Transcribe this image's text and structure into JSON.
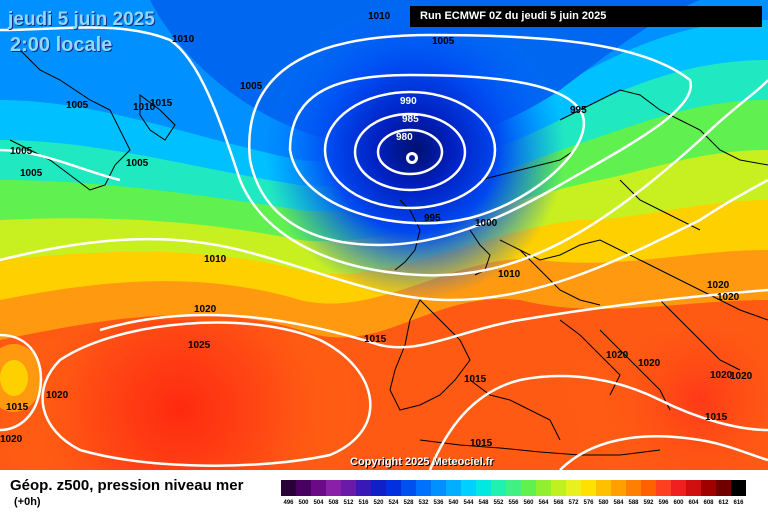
{
  "header": {
    "date": "jeudi 5 juin 2025",
    "time": "2:00 locale",
    "run": "Run ECMWF 0Z du jeudi 5 juin 2025"
  },
  "copyright": "Copyright 2025 Meteociel.fr",
  "footer": {
    "title": "Géop. z500, pression niveau mer",
    "subtitle": "(+0h)"
  },
  "isobar_labels": [
    "1010",
    "1005",
    "1010",
    "1005",
    "1015",
    "1010",
    "1005",
    "1005",
    "1005",
    "990",
    "985",
    "980",
    "995",
    "1000",
    "995",
    "1005",
    "1010",
    "1010",
    "1020",
    "1025",
    "1015",
    "1020",
    "1020",
    "1020",
    "1015",
    "1015",
    "1020",
    "1020",
    "1020",
    "1015",
    "1015",
    "1020",
    "1020"
  ],
  "scale": {
    "ticks": [
      "496",
      "500",
      "504",
      "508",
      "512",
      "516",
      "520",
      "524",
      "528",
      "532",
      "536",
      "540",
      "544",
      "548",
      "552",
      "556",
      "560",
      "564",
      "568",
      "572",
      "576",
      "580",
      "584",
      "588",
      "592",
      "596",
      "600",
      "604",
      "608",
      "612",
      "616"
    ],
    "colors": [
      "#2a0038",
      "#4a0060",
      "#6a0a86",
      "#8a20a8",
      "#6a1aa8",
      "#3a18b8",
      "#1020c8",
      "#0030e0",
      "#0050f0",
      "#0070ff",
      "#0090ff",
      "#00b0ff",
      "#00d0ff",
      "#00e8e0",
      "#20f0b0",
      "#40f080",
      "#60f050",
      "#90f030",
      "#c0f020",
      "#e8f020",
      "#ffe000",
      "#ffc000",
      "#ffa000",
      "#ff8000",
      "#ff6000",
      "#ff4020",
      "#f02020",
      "#d01010",
      "#a00000",
      "#700000",
      "#000000"
    ]
  }
}
